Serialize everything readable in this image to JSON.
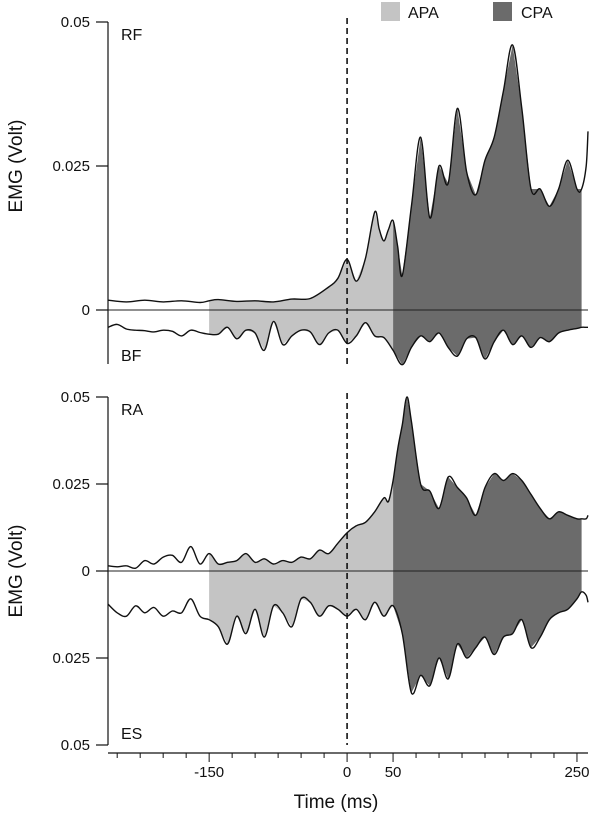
{
  "legend": [
    {
      "label": "APA",
      "color": "#c4c4c4"
    },
    {
      "label": "CPA",
      "color": "#6b6b6b"
    }
  ],
  "x_axis": {
    "label": "Time (ms)",
    "ticks": [
      {
        "value": -150,
        "label": "-150"
      },
      {
        "value": 0,
        "label": "0"
      },
      {
        "value": 50,
        "label": "50"
      },
      {
        "value": 250,
        "label": "250"
      }
    ]
  },
  "chart_data": [
    {
      "type": "area",
      "panel": "top",
      "ylabel": "EMG (Volt)",
      "ylim": [
        -0.019,
        0.05
      ],
      "yticks": [
        {
          "value": 0.05,
          "label": "0.05"
        },
        {
          "value": 0.025,
          "label": "0.025"
        },
        {
          "value": 0,
          "label": "0"
        }
      ],
      "xlim": [
        -260,
        262
      ],
      "annotations": [
        {
          "label": "RF",
          "position": "top-left"
        },
        {
          "label": "BF",
          "position": "bottom-left"
        }
      ],
      "event_line_x": 0,
      "shaded_regions": [
        {
          "label": "APA",
          "from": -150,
          "to": 50
        },
        {
          "label": "CPA",
          "from": 50,
          "to": 255
        }
      ],
      "series": [
        {
          "name": "RF",
          "direction": "up",
          "x": [
            -260,
            -240,
            -220,
            -200,
            -180,
            -160,
            -150,
            -140,
            -120,
            -100,
            -80,
            -60,
            -40,
            -20,
            -10,
            0,
            10,
            20,
            30,
            35,
            40,
            45,
            50,
            55,
            60,
            70,
            80,
            90,
            100,
            110,
            120,
            130,
            140,
            150,
            160,
            170,
            180,
            190,
            200,
            210,
            220,
            230,
            240,
            250,
            255,
            260,
            262
          ],
          "y": [
            0.0017,
            0.0014,
            0.0017,
            0.0014,
            0.0016,
            0.0013,
            0.0016,
            0.0018,
            0.0015,
            0.0016,
            0.0014,
            0.0019,
            0.002,
            0.004,
            0.0055,
            0.0088,
            0.005,
            0.009,
            0.017,
            0.014,
            0.012,
            0.014,
            0.0155,
            0.011,
            0.006,
            0.018,
            0.03,
            0.016,
            0.025,
            0.022,
            0.035,
            0.024,
            0.02,
            0.026,
            0.03,
            0.038,
            0.046,
            0.035,
            0.021,
            0.021,
            0.018,
            0.021,
            0.026,
            0.021,
            0.021,
            0.025,
            0.031
          ]
        },
        {
          "name": "BF",
          "direction": "down",
          "x": [
            -260,
            -250,
            -240,
            -230,
            -220,
            -210,
            -200,
            -190,
            -180,
            -170,
            -160,
            -150,
            -140,
            -130,
            -120,
            -110,
            -100,
            -90,
            -80,
            -70,
            -60,
            -50,
            -40,
            -30,
            -20,
            -10,
            0,
            10,
            20,
            30,
            40,
            50,
            60,
            70,
            80,
            90,
            100,
            110,
            120,
            130,
            140,
            150,
            160,
            170,
            180,
            190,
            200,
            210,
            220,
            230,
            240,
            250,
            255,
            260,
            262
          ],
          "y": [
            -0.003,
            -0.0025,
            -0.0033,
            -0.0035,
            -0.0036,
            -0.0038,
            -0.0035,
            -0.0037,
            -0.0045,
            -0.0035,
            -0.0039,
            -0.0042,
            -0.0042,
            -0.003,
            -0.005,
            -0.0035,
            -0.004,
            -0.007,
            -0.002,
            -0.006,
            -0.0045,
            -0.0035,
            -0.0038,
            -0.006,
            -0.004,
            -0.0035,
            -0.0058,
            -0.0045,
            -0.0022,
            -0.0045,
            -0.0048,
            -0.007,
            -0.0095,
            -0.0065,
            -0.0045,
            -0.0055,
            -0.004,
            -0.0065,
            -0.008,
            -0.005,
            -0.0048,
            -0.0085,
            -0.0055,
            -0.0035,
            -0.006,
            -0.0045,
            -0.0065,
            -0.0048,
            -0.0055,
            -0.004,
            -0.0035,
            -0.0032,
            -0.003,
            -0.003,
            -0.003
          ]
        }
      ]
    },
    {
      "type": "area",
      "panel": "bottom",
      "ylabel": "EMG (Volt)",
      "ylim": [
        -0.05,
        0.05
      ],
      "yticks": [
        {
          "value": 0.05,
          "label": "0.05"
        },
        {
          "value": 0.025,
          "label": "0.025"
        },
        {
          "value": 0,
          "label": "0"
        },
        {
          "value": -0.025,
          "label": "0.025"
        },
        {
          "value": -0.05,
          "label": "0.05"
        }
      ],
      "xlim": [
        -260,
        262
      ],
      "annotations": [
        {
          "label": "RA",
          "position": "top-left"
        },
        {
          "label": "ES",
          "position": "bottom-left"
        }
      ],
      "event_line_x": 0,
      "shaded_regions": [
        {
          "label": "APA",
          "from": -150,
          "to": 50
        },
        {
          "label": "CPA",
          "from": 50,
          "to": 255
        }
      ],
      "series": [
        {
          "name": "RA",
          "direction": "up",
          "x": [
            -260,
            -250,
            -240,
            -230,
            -220,
            -210,
            -200,
            -190,
            -180,
            -170,
            -160,
            -150,
            -140,
            -130,
            -120,
            -110,
            -100,
            -90,
            -80,
            -70,
            -60,
            -50,
            -40,
            -30,
            -20,
            -10,
            0,
            10,
            20,
            30,
            40,
            45,
            50,
            55,
            60,
            65,
            70,
            80,
            90,
            100,
            110,
            120,
            130,
            140,
            150,
            160,
            170,
            180,
            190,
            200,
            210,
            220,
            230,
            240,
            250,
            255,
            260,
            262
          ],
          "y": [
            0.0015,
            0.0012,
            0.0015,
            0.0008,
            0.003,
            0.002,
            0.004,
            0.0045,
            0.0025,
            0.007,
            0.002,
            0.005,
            0.002,
            0.0025,
            0.003,
            0.005,
            0.0025,
            0.0035,
            0.002,
            0.003,
            0.0025,
            0.004,
            0.0035,
            0.006,
            0.005,
            0.008,
            0.011,
            0.013,
            0.014,
            0.017,
            0.021,
            0.02,
            0.026,
            0.035,
            0.042,
            0.05,
            0.043,
            0.025,
            0.023,
            0.018,
            0.027,
            0.024,
            0.021,
            0.016,
            0.024,
            0.028,
            0.026,
            0.028,
            0.026,
            0.022,
            0.018,
            0.015,
            0.017,
            0.016,
            0.015,
            0.015,
            0.015,
            0.016
          ]
        },
        {
          "name": "ES",
          "direction": "down",
          "x": [
            -260,
            -250,
            -240,
            -230,
            -220,
            -210,
            -200,
            -190,
            -180,
            -170,
            -160,
            -150,
            -140,
            -130,
            -120,
            -110,
            -100,
            -90,
            -80,
            -70,
            -60,
            -50,
            -40,
            -30,
            -20,
            -10,
            0,
            10,
            20,
            30,
            40,
            50,
            60,
            70,
            80,
            90,
            100,
            110,
            120,
            130,
            140,
            150,
            160,
            170,
            180,
            190,
            200,
            210,
            220,
            230,
            240,
            250,
            255,
            260,
            262
          ],
          "y": [
            -0.0095,
            -0.012,
            -0.013,
            -0.01,
            -0.012,
            -0.0105,
            -0.013,
            -0.0115,
            -0.012,
            -0.008,
            -0.013,
            -0.014,
            -0.016,
            -0.021,
            -0.013,
            -0.018,
            -0.011,
            -0.019,
            -0.01,
            -0.012,
            -0.016,
            -0.008,
            -0.009,
            -0.013,
            -0.01,
            -0.011,
            -0.013,
            -0.011,
            -0.014,
            -0.009,
            -0.013,
            -0.01,
            -0.018,
            -0.035,
            -0.03,
            -0.033,
            -0.025,
            -0.031,
            -0.021,
            -0.025,
            -0.022,
            -0.019,
            -0.024,
            -0.019,
            -0.018,
            -0.014,
            -0.022,
            -0.019,
            -0.014,
            -0.012,
            -0.011,
            -0.008,
            -0.006,
            -0.007,
            -0.009
          ]
        }
      ]
    }
  ]
}
